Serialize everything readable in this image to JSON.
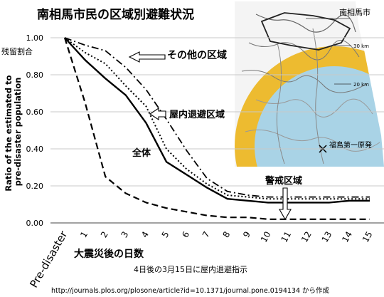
{
  "chart_data": {
    "type": "line",
    "title": "南相馬市民の区域別避難状況",
    "ylabel": "Ratio of the estimated to pre-disaster population",
    "ylabel_secondary": "残留割合",
    "xlabel": "大震災後の日数",
    "caption": "4日後の3月15日に屋内退避指示",
    "source": "http://journals.plos.org/plosone/article?id=10.1371/journal.pone.0194134 から作成",
    "ylim": [
      0,
      1
    ],
    "yticks": [
      "0.00",
      "0.20",
      "0.40",
      "0.60",
      "0.80",
      "1.00"
    ],
    "x": [
      0,
      1,
      2,
      3,
      4,
      5,
      6,
      7,
      8,
      9,
      10,
      11,
      12,
      13,
      14,
      15
    ],
    "xticks": [
      "Pre-disaster",
      "1",
      "2",
      "3",
      "4",
      "5",
      "6",
      "7",
      "8",
      "9",
      "10",
      "11",
      "12",
      "13",
      "14",
      "15"
    ],
    "series": [
      {
        "name": "全体",
        "style": "solid",
        "color": "#000000",
        "values": [
          1.0,
          0.88,
          0.78,
          0.69,
          0.54,
          0.33,
          0.26,
          0.19,
          0.13,
          0.12,
          0.11,
          0.11,
          0.11,
          0.11,
          0.12,
          0.12
        ]
      },
      {
        "name": "屋内退避区域",
        "style": "dotted",
        "color": "#000000",
        "values": [
          1.0,
          0.92,
          0.86,
          0.74,
          0.63,
          0.4,
          0.29,
          0.21,
          0.15,
          0.14,
          0.13,
          0.13,
          0.13,
          0.13,
          0.13,
          0.13
        ]
      },
      {
        "name": "その他の区域",
        "style": "dashdot",
        "color": "#000000",
        "values": [
          1.0,
          0.96,
          0.93,
          0.84,
          0.72,
          0.56,
          0.39,
          0.24,
          0.17,
          0.15,
          0.14,
          0.14,
          0.14,
          0.14,
          0.14,
          0.14
        ]
      },
      {
        "name": "警戒区域",
        "style": "dashed",
        "color": "#000000",
        "values": [
          1.0,
          0.65,
          0.25,
          0.16,
          0.11,
          0.08,
          0.06,
          0.04,
          0.03,
          0.03,
          0.02,
          0.02,
          0.02,
          0.02,
          0.02,
          0.02
        ]
      }
    ],
    "map_inset": {
      "labels": {
        "city": "南相馬市",
        "ring30": "30 km",
        "ring20": "20 km",
        "plant": "福島第一原発"
      },
      "colors": {
        "ring30_fill": "#EDBB30",
        "ring20_fill": "#A9D3E6",
        "land": "#F4F4F4",
        "border": "#999999"
      }
    }
  }
}
